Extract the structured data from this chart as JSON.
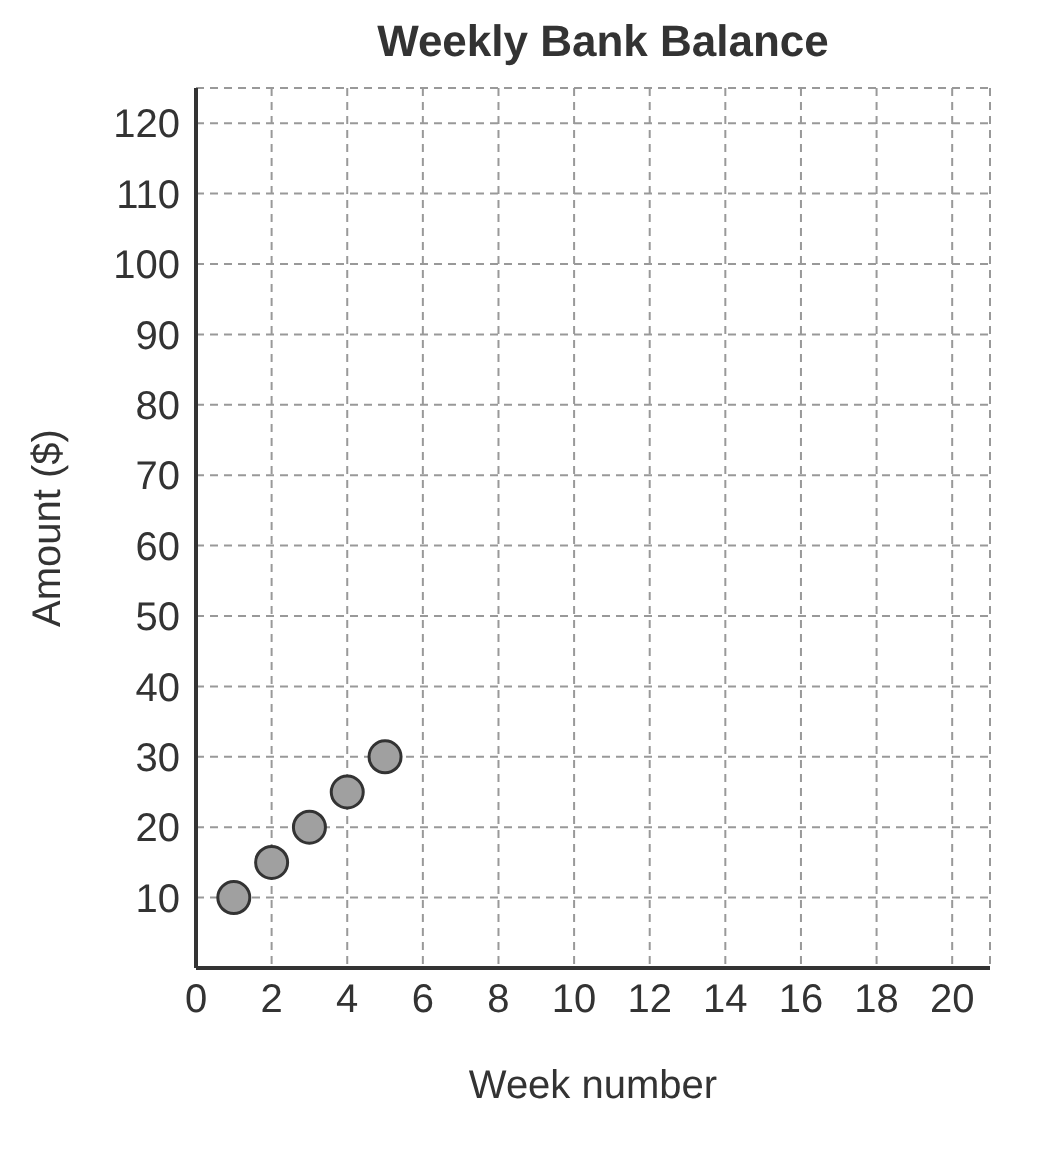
{
  "chart_data": {
    "type": "scatter",
    "title": "Weekly Bank Balance",
    "xlabel": "Week number",
    "ylabel": "Amount ($)",
    "x": [
      1,
      2,
      3,
      4,
      5
    ],
    "series": [
      {
        "color": "#a0a0a0",
        "values": [
          10,
          15,
          20,
          25,
          30
        ]
      }
    ],
    "xlim": [
      0,
      21
    ],
    "xticks": [
      0,
      2,
      4,
      6,
      8,
      10,
      12,
      14,
      16,
      18,
      20
    ],
    "ylim": [
      0,
      125
    ],
    "yticks": [
      10,
      20,
      30,
      40,
      50,
      60,
      70,
      80,
      90,
      100,
      110,
      120
    ],
    "grid": true,
    "marker": "circle"
  }
}
